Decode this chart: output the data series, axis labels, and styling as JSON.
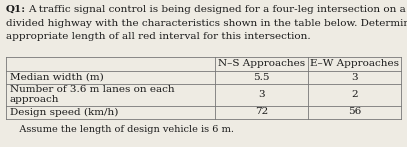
{
  "question_label": "Q1:",
  "question_body": "A traffic signal control is being designed for a four-leg intersection on a divided highway with the characteristics shown in the table below. Determine an appropriate length of all red interval for this intersection.",
  "col_headers": [
    "",
    "N–S Approaches",
    "E–W Approaches"
  ],
  "row_labels": [
    "Median width (m)",
    "Number of 3.6 m lanes on each\napproach",
    "Design speed (km/h)"
  ],
  "ns_values": [
    "5.5",
    "3",
    "72"
  ],
  "ew_values": [
    "3",
    "2",
    "56"
  ],
  "footnote": "   Assume the length of design vehicle is 6 m.",
  "bg_color": "#eeebe3",
  "table_bg": "#ffffff",
  "text_color": "#1a1a1a",
  "font_size": 7.5,
  "label_fontsize": 7.5,
  "bold_label": "Q1:",
  "figw": 4.07,
  "figh": 1.47,
  "dpi": 100
}
